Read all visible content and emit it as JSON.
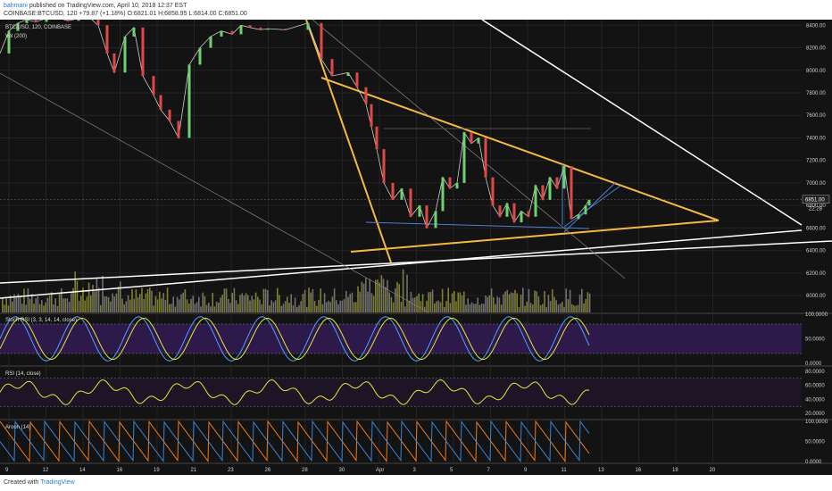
{
  "header": {
    "author": "bahmani",
    "published": "published on TradingView.com, April 10, 2018 12:37 EST",
    "ticker": "COINBASE:BTCUSD, 120",
    "ohlc_text": "O:6821.01 H:6858.95 L:6814.00 C:6851.00",
    "change": "+79.87 (+1.18%)"
  },
  "footer": {
    "created_with": "Created with",
    "brand": "TradingView"
  },
  "chart_data": {
    "type": "line",
    "symbol": "BTC/USD, 120, COINBASE",
    "volume_label": "Vol (200)",
    "price_axis": {
      "range": [
        5850,
        8450
      ],
      "ticks": [
        "8400.00",
        "8200.00",
        "8000.00",
        "7800.00",
        "7600.00",
        "7400.00",
        "7200.00",
        "7000.00",
        "6800.00",
        "6600.00",
        "6400.00",
        "6200.00",
        "6000.00"
      ],
      "current_price": "6851.00",
      "countdown": "22:28"
    },
    "x_axis": {
      "ticks": [
        "9",
        "12",
        "14",
        "16",
        "19",
        "21",
        "23",
        "26",
        "28",
        "30",
        "Apr",
        "3",
        "5",
        "7",
        "9",
        "11",
        "13",
        "16",
        "18",
        "20"
      ]
    },
    "price_series": {
      "t": [
        0,
        10,
        20,
        30,
        40,
        52,
        64,
        76,
        88,
        100,
        110,
        120,
        128,
        140,
        150,
        160,
        172,
        180,
        190,
        200,
        212,
        224,
        236,
        248,
        260,
        270,
        280,
        292,
        300,
        320,
        345,
        360,
        372,
        390,
        400,
        410,
        416,
        422,
        430,
        440,
        450,
        460,
        470,
        478,
        488,
        496,
        504,
        512,
        520,
        528,
        536,
        544,
        552,
        560,
        568,
        576,
        584,
        592,
        600,
        608,
        616,
        624,
        632,
        640,
        648,
        656,
        660
      ],
      "y": [
        8150,
        8350,
        8420,
        8450,
        8430,
        8460,
        8470,
        8440,
        8460,
        8470,
        8400,
        8150,
        7980,
        8300,
        8380,
        7950,
        7780,
        7650,
        7550,
        7400,
        8050,
        8200,
        8300,
        8350,
        8320,
        8400,
        8380,
        8360,
        8370,
        8360,
        8420,
        8100,
        7950,
        7980,
        7850,
        7700,
        7500,
        7300,
        7000,
        6850,
        6950,
        6700,
        6800,
        6600,
        6750,
        7050,
        6950,
        7000,
        7450,
        7350,
        7400,
        7050,
        6800,
        6700,
        6820,
        6650,
        6750,
        6700,
        6980,
        6850,
        7050,
        6950,
        7150,
        6680,
        6720,
        6800,
        6850
      ]
    },
    "stoch_rsi": {
      "label": "Stoch RSI (3, 3, 14, 14, close)",
      "ticks": [
        "100.0000",
        "50.0000",
        "0.0000"
      ],
      "range": [
        0,
        100
      ]
    },
    "rsi": {
      "label": "RSI (14, close)",
      "ticks": [
        "80.0000",
        "60.0000",
        "40.0000",
        "20.0000"
      ],
      "range": [
        15,
        85
      ]
    },
    "aroon": {
      "label": "Aroon (14)",
      "ticks": [
        "100.0000",
        "50.0000",
        "0.0000"
      ],
      "range": [
        0,
        100
      ]
    },
    "colors": {
      "triangle": "#f5b942",
      "trend_white": "#ffffff",
      "blue_lines": "#4d7fd6",
      "volume": "#9a9a3a",
      "candle_up": "#6fd06f",
      "candle_down": "#e04848",
      "stoch_fill": "#2e1a4a",
      "aroon_up": "#f07a1e",
      "aroon_down": "#3a83d6",
      "rsi_line": "#e6e63a"
    },
    "grid": true
  }
}
